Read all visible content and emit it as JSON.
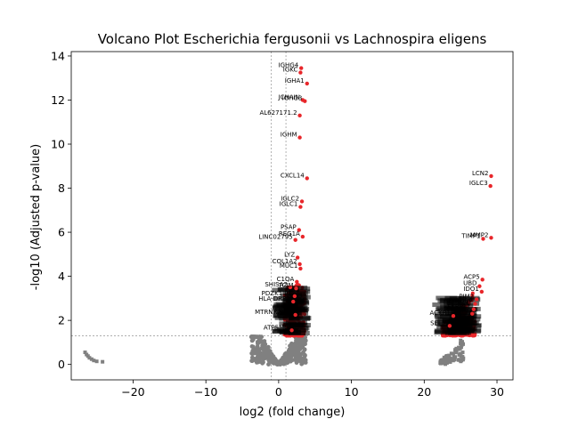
{
  "chart_data": {
    "type": "scatter",
    "title": "Volcano Plot Escherichia fergusonii vs Lachnospira eligens",
    "xlabel": "log2 (fold change)",
    "ylabel": "-log10 (Adjusted p-value)",
    "xlim": [
      -28.5,
      32.2
    ],
    "ylim": [
      -0.7,
      14.2
    ],
    "xticks": [
      -20,
      -10,
      0,
      10,
      20,
      30
    ],
    "yticks": [
      0,
      2,
      4,
      6,
      8,
      10,
      12,
      14
    ],
    "grid": false,
    "legend": "none",
    "thresholds": {
      "fc_lines": [
        -1,
        1
      ],
      "p_line": 1.3
    },
    "colors": {
      "significant": "#e8262a",
      "non_significant": "#808080",
      "threshold": "#808080"
    },
    "significant_labeled": [
      {
        "label": "IGHG4",
        "x": 3.1,
        "y": 13.45
      },
      {
        "label": "IGKC",
        "x": 3.0,
        "y": 13.25
      },
      {
        "label": "IGHA1",
        "x": 3.9,
        "y": 12.75
      },
      {
        "label": "JCHAIN",
        "x": 3.3,
        "y": 12.0
      },
      {
        "label": "IGHG3",
        "x": 3.6,
        "y": 11.95
      },
      {
        "label": "AL627171.2",
        "x": 2.9,
        "y": 11.3
      },
      {
        "label": "IGHM",
        "x": 2.9,
        "y": 10.3
      },
      {
        "label": "CXCL14",
        "x": 3.9,
        "y": 8.45
      },
      {
        "label": "IGLC2",
        "x": 3.2,
        "y": 7.4
      },
      {
        "label": "IGLC1",
        "x": 3.0,
        "y": 7.15
      },
      {
        "label": "PSAP",
        "x": 2.8,
        "y": 6.1
      },
      {
        "label": "REG1A",
        "x": 3.3,
        "y": 5.8
      },
      {
        "label": "LINC02795",
        "x": 2.3,
        "y": 5.65
      },
      {
        "label": "LYZ",
        "x": 2.6,
        "y": 4.85
      },
      {
        "label": "COL1A2",
        "x": 2.9,
        "y": 4.55
      },
      {
        "label": "MUC1",
        "x": 3.0,
        "y": 4.35
      },
      {
        "label": "C1QA",
        "x": 2.5,
        "y": 3.75
      },
      {
        "label": "SHISA2",
        "x": 1.6,
        "y": 3.5
      },
      {
        "label": "TCIM",
        "x": 2.4,
        "y": 3.45
      },
      {
        "label": "PDZK1IP1",
        "x": 2.2,
        "y": 3.1
      },
      {
        "label": "HLA-DRB1",
        "x": 2.0,
        "y": 2.85
      },
      {
        "label": "MTRNR2L12",
        "x": 2.3,
        "y": 2.25
      },
      {
        "label": "ATP5MG",
        "x": 1.8,
        "y": 1.55
      },
      {
        "label": "LCN2",
        "x": 29.2,
        "y": 8.55
      },
      {
        "label": "IGLC3",
        "x": 29.1,
        "y": 8.1
      },
      {
        "label": "TIMP1",
        "x": 28.1,
        "y": 5.7
      },
      {
        "label": "MMP2",
        "x": 29.2,
        "y": 5.75
      },
      {
        "label": "ACP5",
        "x": 28.0,
        "y": 3.85
      },
      {
        "label": "UBD",
        "x": 27.6,
        "y": 3.55
      },
      {
        "label": "IDO1",
        "x": 27.9,
        "y": 3.3
      },
      {
        "label": "PIM2",
        "x": 27.2,
        "y": 2.95
      },
      {
        "label": "TYROBP",
        "x": 27.0,
        "y": 2.75
      },
      {
        "label": "FKBP11",
        "x": 26.8,
        "y": 2.5
      },
      {
        "label": "SPP1",
        "x": 26.6,
        "y": 2.3
      },
      {
        "label": "ACKR1",
        "x": 24.0,
        "y": 2.2
      },
      {
        "label": "SELM",
        "x": 23.5,
        "y": 1.75
      }
    ],
    "non_significant_low_fc": [
      {
        "x": -26.6,
        "y": 0.55
      },
      {
        "x": -26.4,
        "y": 0.45
      },
      {
        "x": -26.2,
        "y": 0.38
      },
      {
        "x": -26.0,
        "y": 0.3
      },
      {
        "x": -25.7,
        "y": 0.24
      },
      {
        "x": -25.4,
        "y": 0.18
      },
      {
        "x": -25.0,
        "y": 0.14
      },
      {
        "x": -24.2,
        "y": 0.12
      }
    ]
  }
}
